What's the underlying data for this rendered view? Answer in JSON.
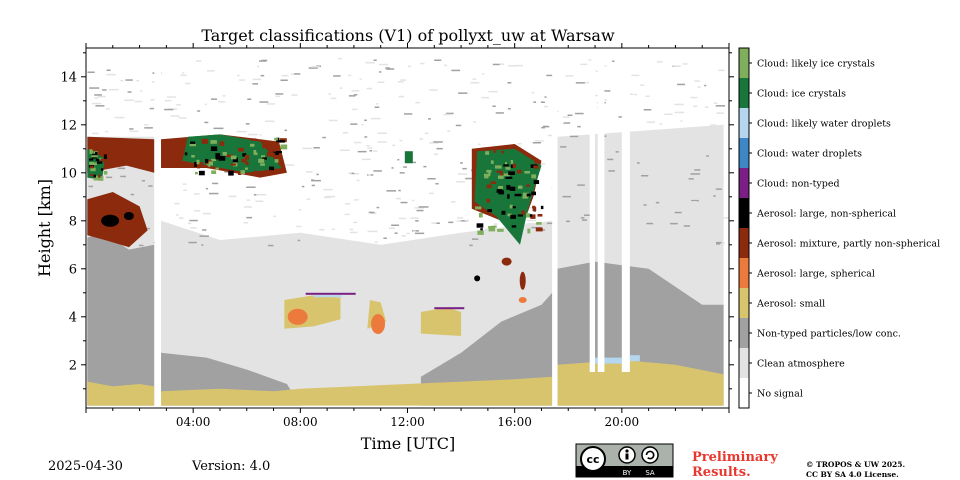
{
  "chart_data": {
    "type": "heatmap",
    "title": "Target classifications (V1) of pollyxt_uw at Warsaw",
    "xlabel": "Time [UTC]",
    "ylabel": "Height [km]",
    "x_ticks": [
      "04:00",
      "08:00",
      "12:00",
      "16:00",
      "20:00"
    ],
    "x_tick_hours": [
      4,
      8,
      12,
      16,
      20
    ],
    "xlim_hours": [
      0,
      24
    ],
    "y_ticks": [
      "2",
      "4",
      "6",
      "8",
      "10",
      "12",
      "14"
    ],
    "y_tick_values": [
      2,
      4,
      6,
      8,
      10,
      12,
      14
    ],
    "ylim_km": [
      0.2,
      15.2
    ],
    "grid": false,
    "legend_position": "right colorbar",
    "classes": [
      {
        "label": "No signal",
        "color": "#ffffff"
      },
      {
        "label": "Clean atmosphere",
        "color": "#e3e3e3"
      },
      {
        "label": "Non-typed particles/low conc.",
        "color": "#a1a1a1"
      },
      {
        "label": "Aerosol: small",
        "color": "#d9c46e"
      },
      {
        "label": "Aerosol: large, spherical",
        "color": "#ec7a3c"
      },
      {
        "label": "Aerosol: mixture, partly non-spherical",
        "color": "#8b2a0c"
      },
      {
        "label": "Aerosol: large, non-spherical",
        "color": "#000000"
      },
      {
        "label": "Cloud: non-typed",
        "color": "#7a1f86"
      },
      {
        "label": "Cloud: water droplets",
        "color": "#3c87c4"
      },
      {
        "label": "Cloud: likely water droplets",
        "color": "#b4d6ef"
      },
      {
        "label": "Cloud: ice crystals",
        "color": "#19763a"
      },
      {
        "label": "Cloud: likely ice crystals",
        "color": "#7fae5d"
      }
    ],
    "data_gaps_hours": [
      [
        2.55,
        2.8
      ],
      [
        17.4,
        17.6
      ]
    ]
  },
  "footer": {
    "date": "2025-04-30",
    "version": "Version: 4.0",
    "preliminary": "Preliminary\nResults.",
    "license_line1": "© TROPOS & UW 2025.",
    "license_line2": "CC BY SA 4.0 License.",
    "cc_text": "cc",
    "by_text": "BY",
    "sa_text": "SA"
  },
  "colors": {
    "preliminary": "#e8372f"
  }
}
